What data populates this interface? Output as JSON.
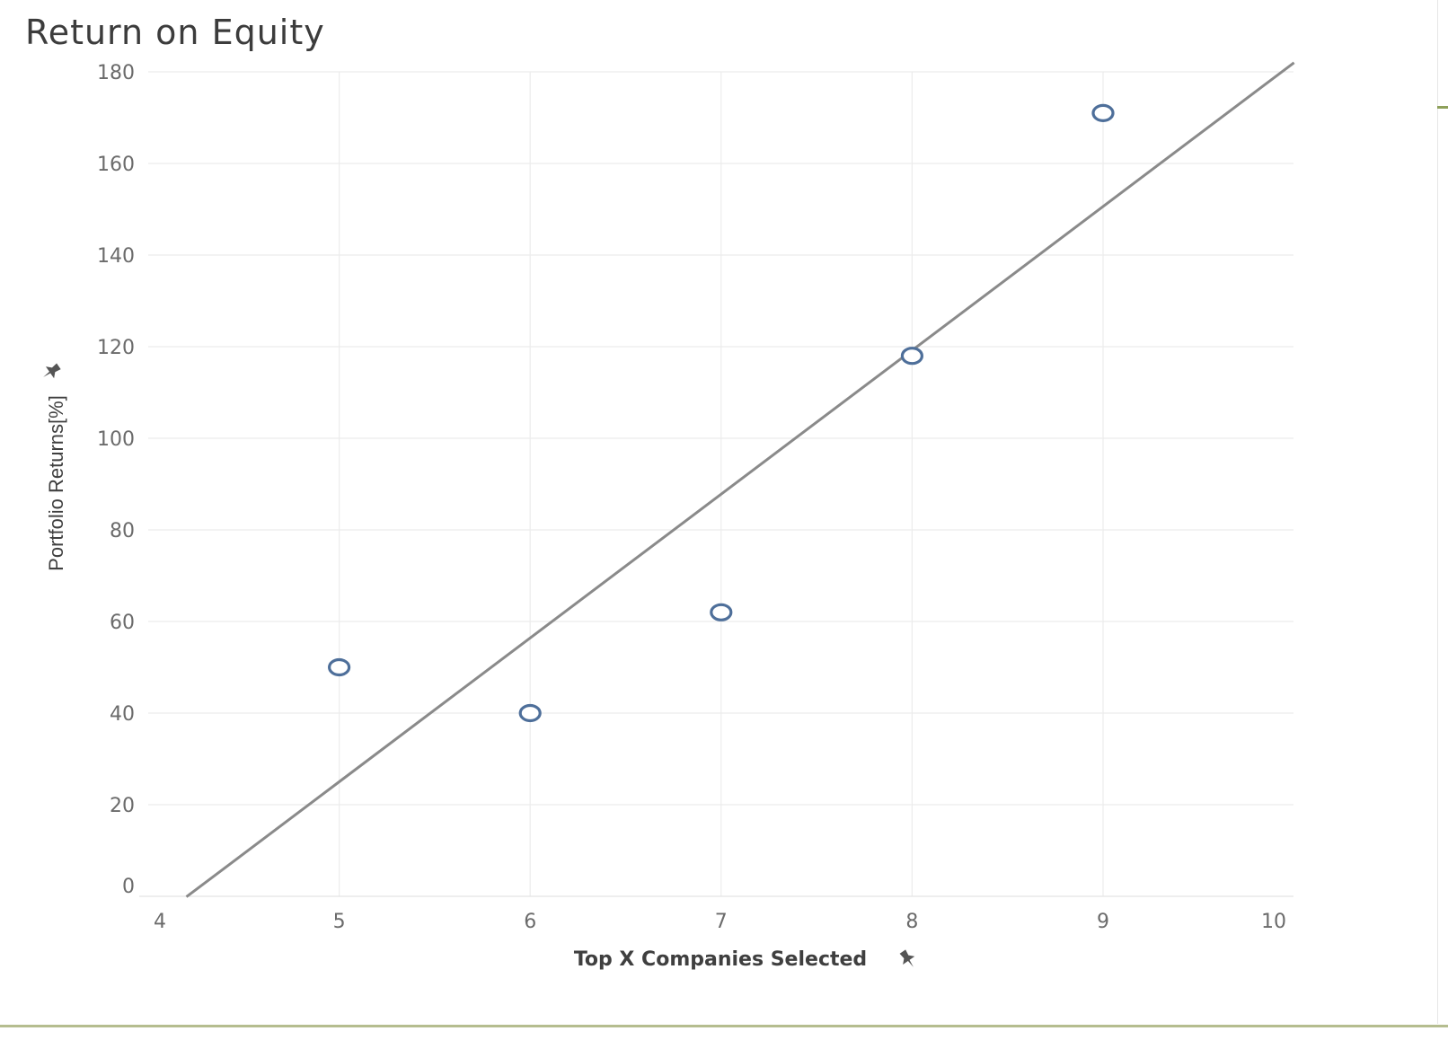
{
  "chart_data": {
    "type": "scatter",
    "title": "Return on Equity",
    "xlabel": "Top X Companies Selected",
    "ylabel": "Portfolio Returns[%]",
    "xlim": [
      4,
      10
    ],
    "ylim": [
      0,
      180
    ],
    "x_ticks": [
      "4",
      "5",
      "6",
      "7",
      "8",
      "9",
      "10"
    ],
    "y_ticks": [
      "0",
      "20",
      "40",
      "60",
      "80",
      "100",
      "120",
      "140",
      "160",
      "180"
    ],
    "points": [
      {
        "x": 5,
        "y": 50
      },
      {
        "x": 6,
        "y": 40
      },
      {
        "x": 7,
        "y": 62
      },
      {
        "x": 8,
        "y": 118
      },
      {
        "x": 9,
        "y": 171
      }
    ],
    "trend_line": {
      "intercept": -132,
      "slope": 31.4,
      "x_start": 4.2,
      "x_end": 10
    },
    "grid": true,
    "colors": {
      "marker": "#4e6f9a",
      "trend": "#8a8a8a",
      "grid": "#ececec"
    },
    "icons": {
      "axis_pin": "pin-icon"
    }
  }
}
